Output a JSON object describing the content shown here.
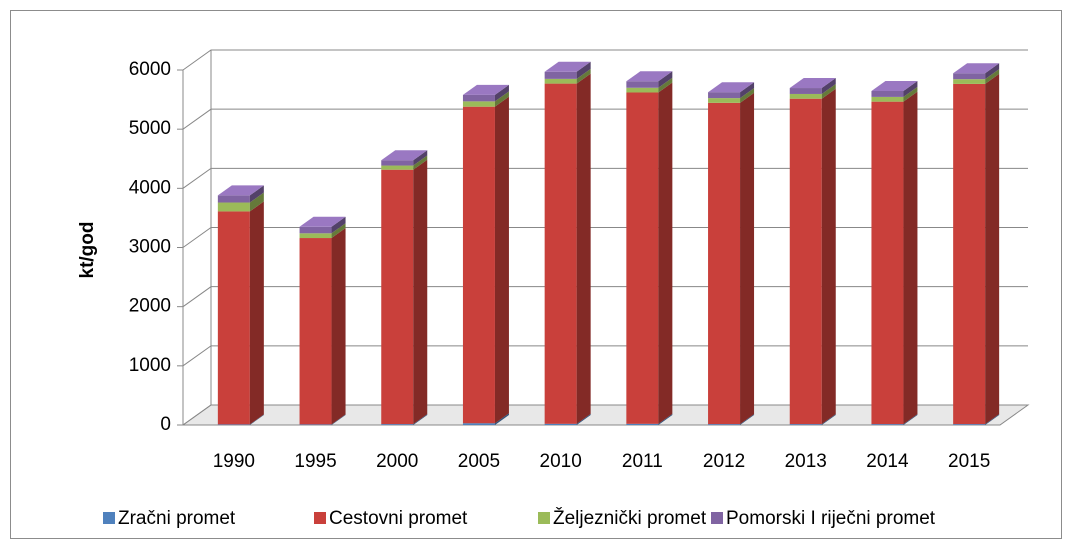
{
  "chart_data": {
    "type": "stacked-bar-3d",
    "y_label": "kt/god",
    "categories": [
      "1990",
      "1995",
      "2000",
      "2005",
      "2010",
      "2011",
      "2012",
      "2013",
      "2014",
      "2015"
    ],
    "series": [
      {
        "name": "Zračni promet",
        "color": "#4f81bd",
        "values": [
          10,
          10,
          15,
          30,
          20,
          20,
          15,
          15,
          15,
          15
        ]
      },
      {
        "name": "Cestovni promet",
        "color": "#c9403b",
        "values": [
          3600,
          3150,
          4300,
          5350,
          5750,
          5600,
          5430,
          5500,
          5450,
          5750
        ]
      },
      {
        "name": "Željeznički promet",
        "color": "#9bbb59",
        "values": [
          150,
          80,
          70,
          90,
          80,
          80,
          80,
          80,
          80,
          80
        ]
      },
      {
        "name": "Pomorski I riječni promet",
        "color": "#8064a2",
        "values": [
          120,
          110,
          90,
          110,
          120,
          110,
          100,
          100,
          100,
          100
        ]
      }
    ],
    "ylim": [
      0,
      6000
    ],
    "yticks": [
      0,
      1000,
      2000,
      3000,
      4000,
      5000,
      6000
    ],
    "grid": true,
    "legend": "bottom"
  }
}
